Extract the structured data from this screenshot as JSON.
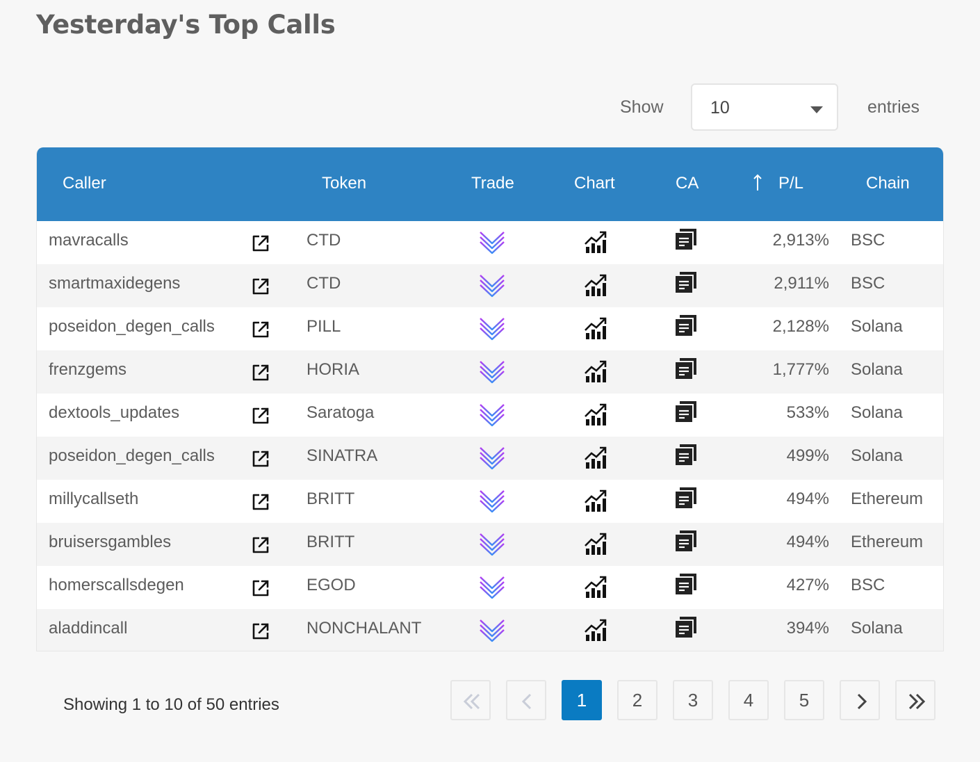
{
  "title": "Yesterday's Top Calls",
  "length": {
    "show_label": "Show",
    "value": "10",
    "entries_label": "entries"
  },
  "columns": {
    "caller": "Caller",
    "token": "Token",
    "trade": "Trade",
    "chart": "Chart",
    "ca": "CA",
    "pl": "P/L",
    "chain": "Chain"
  },
  "rows": [
    {
      "caller": "mavracalls",
      "token": "CTD",
      "pl": "2,913%",
      "chain": "BSC"
    },
    {
      "caller": "smartmaxidegens",
      "token": "CTD",
      "pl": "2,911%",
      "chain": "BSC"
    },
    {
      "caller": "poseidon_degen_calls",
      "token": "PILL",
      "pl": "2,128%",
      "chain": "Solana"
    },
    {
      "caller": "frenzgems",
      "token": "HORIA",
      "pl": "1,777%",
      "chain": "Solana"
    },
    {
      "caller": "dextools_updates",
      "token": "Saratoga",
      "pl": "533%",
      "chain": "Solana"
    },
    {
      "caller": "poseidon_degen_calls",
      "token": "SINATRA",
      "pl": "499%",
      "chain": "Solana"
    },
    {
      "caller": "millycallseth",
      "token": "BRITT",
      "pl": "494%",
      "chain": "Ethereum"
    },
    {
      "caller": "bruisersgambles",
      "token": "BRITT",
      "pl": "494%",
      "chain": "Ethereum"
    },
    {
      "caller": "homerscallsdegen",
      "token": "EGOD",
      "pl": "427%",
      "chain": "BSC"
    },
    {
      "caller": "aladdincall",
      "token": "NONCHALANT",
      "pl": "394%",
      "chain": "Solana"
    }
  ],
  "pagination": {
    "info": "Showing 1 to 10 of 50 entries",
    "pages": [
      "1",
      "2",
      "3",
      "4",
      "5"
    ],
    "current": "1"
  },
  "icons": {
    "caller_link": "external-link-icon",
    "trade": "trade-logo-icon",
    "chart": "chart-icon",
    "ca": "copy-icon",
    "sort": "sort-up-arrow-icon",
    "first": "double-chevron-left-icon",
    "prev": "chevron-left-icon",
    "next": "chevron-right-icon",
    "last": "double-chevron-right-icon"
  },
  "colors": {
    "header": "#2e83c3",
    "current_page": "#0a7bc2"
  }
}
